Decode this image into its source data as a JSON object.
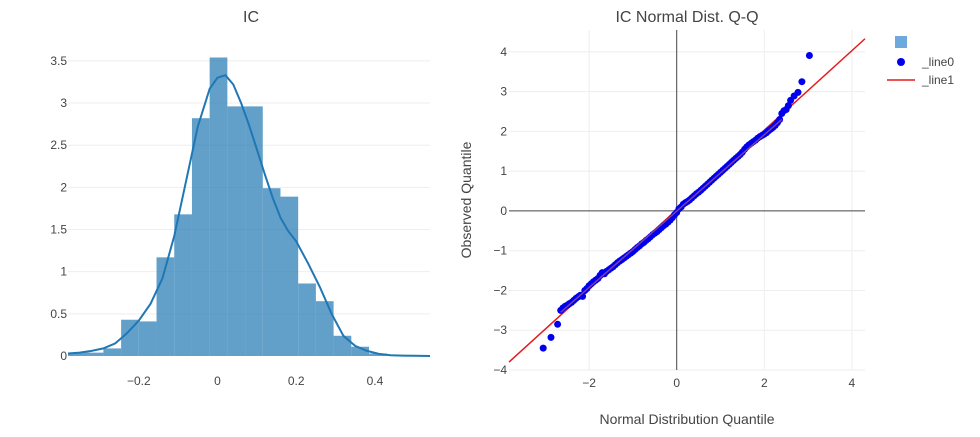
{
  "chart_data": [
    {
      "type": "bar",
      "title": "IC",
      "xlabel": "",
      "ylabel": "",
      "xlim": [
        -0.38,
        0.54
      ],
      "ylim": [
        0,
        3.7
      ],
      "x_ticks": [
        "−0.2",
        "0",
        "0.2",
        "0.4"
      ],
      "x_tick_values": [
        -0.2,
        0,
        0.2,
        0.4
      ],
      "y_ticks": [
        "0",
        "0.5",
        "1",
        "1.5",
        "2",
        "2.5",
        "3",
        "3.5"
      ],
      "y_tick_values": [
        0,
        0.5,
        1,
        1.5,
        2,
        2.5,
        3,
        3.5
      ],
      "bar_color": "#1f77b4",
      "bin_width": 0.045,
      "bins": [
        {
          "x0": -0.38,
          "x1": -0.29,
          "value": 0.04
        },
        {
          "x0": -0.29,
          "x1": -0.245,
          "value": 0.09
        },
        {
          "x0": -0.245,
          "x1": -0.2,
          "value": 0.43
        },
        {
          "x0": -0.2,
          "x1": -0.155,
          "value": 0.41
        },
        {
          "x0": -0.155,
          "x1": -0.11,
          "value": 1.17
        },
        {
          "x0": -0.11,
          "x1": -0.065,
          "value": 1.68
        },
        {
          "x0": -0.065,
          "x1": -0.02,
          "value": 2.82
        },
        {
          "x0": -0.02,
          "x1": 0.025,
          "value": 3.54
        },
        {
          "x0": 0.025,
          "x1": 0.07,
          "value": 2.96
        },
        {
          "x0": 0.07,
          "x1": 0.115,
          "value": 2.96
        },
        {
          "x0": 0.115,
          "x1": 0.16,
          "value": 1.99
        },
        {
          "x0": 0.16,
          "x1": 0.205,
          "value": 1.89
        },
        {
          "x0": 0.205,
          "x1": 0.25,
          "value": 0.86
        },
        {
          "x0": 0.25,
          "x1": 0.295,
          "value": 0.65
        },
        {
          "x0": 0.295,
          "x1": 0.34,
          "value": 0.24
        },
        {
          "x0": 0.34,
          "x1": 0.385,
          "value": 0.11
        },
        {
          "x0": 0.385,
          "x1": 0.43,
          "value": 0.03
        }
      ],
      "kde": {
        "color": "#1f77b4",
        "x": [
          -0.38,
          -0.35,
          -0.32,
          -0.29,
          -0.26,
          -0.23,
          -0.2,
          -0.17,
          -0.14,
          -0.11,
          -0.08,
          -0.05,
          -0.02,
          0.0,
          0.02,
          0.04,
          0.06,
          0.08,
          0.1,
          0.12,
          0.14,
          0.16,
          0.18,
          0.2,
          0.23,
          0.26,
          0.29,
          0.32,
          0.35,
          0.38,
          0.41,
          0.44,
          0.47,
          0.5,
          0.54
        ],
        "y": [
          0.03,
          0.04,
          0.06,
          0.09,
          0.15,
          0.27,
          0.42,
          0.62,
          0.92,
          1.42,
          2.07,
          2.72,
          3.17,
          3.3,
          3.33,
          3.22,
          3.0,
          2.74,
          2.45,
          2.16,
          1.88,
          1.64,
          1.48,
          1.36,
          1.1,
          0.82,
          0.5,
          0.24,
          0.12,
          0.06,
          0.025,
          0.01,
          0.005,
          0.002,
          0.0
        ]
      }
    },
    {
      "type": "scatter",
      "title": "IC Normal Dist. Q-Q",
      "xlabel": "Normal Distribution Quantile",
      "ylabel": "Observed Quantile",
      "xlim": [
        -3.83,
        4.3
      ],
      "ylim": [
        -4.0,
        4.55
      ],
      "x_ticks": [
        "−2",
        "0",
        "2",
        "4"
      ],
      "x_tick_values": [
        -2,
        0,
        2,
        4
      ],
      "y_ticks": [
        "−4",
        "−3",
        "−2",
        "−1",
        "0",
        "1",
        "2",
        "3",
        "4"
      ],
      "y_tick_values": [
        -4,
        -3,
        -2,
        -1,
        0,
        1,
        2,
        3,
        4
      ],
      "legend": {
        "placement": "top-right",
        "entries": [
          {
            "name": "",
            "kind": "swatch",
            "color": "#6fa8dc"
          },
          {
            "name": "_line0",
            "kind": "marker",
            "color": "#0000ee"
          },
          {
            "name": "_line1",
            "kind": "line",
            "color": "#e41a1c"
          }
        ]
      },
      "series": [
        {
          "name": "_line0",
          "kind": "points",
          "color": "#0000ee",
          "x": [
            -3.05,
            -2.87,
            -2.72,
            -2.65,
            -2.6,
            -2.55,
            -2.5,
            -2.45,
            -2.4,
            -2.35,
            -2.3,
            -2.25,
            -2.2,
            -2.15,
            -2.1,
            -2.05,
            -2.0,
            -1.95,
            -1.9,
            -1.85,
            -1.8,
            -1.75,
            -1.7,
            -1.65,
            -1.6,
            -1.55,
            -1.5,
            -1.45,
            -1.4,
            -1.35,
            -1.3,
            -1.25,
            -1.2,
            -1.15,
            -1.1,
            -1.05,
            -1.0,
            -0.95,
            -0.9,
            -0.85,
            -0.8,
            -0.75,
            -0.7,
            -0.65,
            -0.6,
            -0.55,
            -0.5,
            -0.45,
            -0.4,
            -0.35,
            -0.3,
            -0.25,
            -0.2,
            -0.15,
            -0.1,
            -0.05,
            0.0,
            0.05,
            0.1,
            0.15,
            0.2,
            0.25,
            0.3,
            0.35,
            0.4,
            0.45,
            0.5,
            0.55,
            0.6,
            0.65,
            0.7,
            0.75,
            0.8,
            0.85,
            0.9,
            0.95,
            1.0,
            1.05,
            1.1,
            1.15,
            1.2,
            1.25,
            1.3,
            1.35,
            1.4,
            1.45,
            1.5,
            1.55,
            1.6,
            1.65,
            1.7,
            1.75,
            1.8,
            1.85,
            1.9,
            1.95,
            2.0,
            2.05,
            2.1,
            2.15,
            2.2,
            2.25,
            2.3,
            2.35,
            2.4,
            2.45,
            2.5,
            2.55,
            2.6,
            2.68,
            2.77,
            2.86,
            3.03
          ],
          "y": [
            -3.45,
            -3.18,
            -2.85,
            -2.5,
            -2.44,
            -2.4,
            -2.37,
            -2.33,
            -2.3,
            -2.25,
            -2.2,
            -2.16,
            -2.12,
            -2.15,
            -2.0,
            -1.95,
            -1.88,
            -1.83,
            -1.78,
            -1.74,
            -1.7,
            -1.62,
            -1.55,
            -1.58,
            -1.52,
            -1.48,
            -1.44,
            -1.4,
            -1.35,
            -1.3,
            -1.26,
            -1.22,
            -1.18,
            -1.14,
            -1.1,
            -1.06,
            -1.02,
            -0.97,
            -0.92,
            -0.88,
            -0.83,
            -0.79,
            -0.74,
            -0.7,
            -0.65,
            -0.6,
            -0.56,
            -0.52,
            -0.47,
            -0.42,
            -0.37,
            -0.33,
            -0.28,
            -0.23,
            -0.17,
            -0.1,
            -0.04,
            0.05,
            0.1,
            0.17,
            0.21,
            0.24,
            0.28,
            0.33,
            0.38,
            0.43,
            0.47,
            0.52,
            0.57,
            0.62,
            0.67,
            0.72,
            0.77,
            0.82,
            0.87,
            0.92,
            0.97,
            1.02,
            1.07,
            1.12,
            1.17,
            1.22,
            1.27,
            1.32,
            1.37,
            1.42,
            1.48,
            1.55,
            1.61,
            1.66,
            1.7,
            1.74,
            1.78,
            1.83,
            1.87,
            1.9,
            1.93,
            1.97,
            2.02,
            2.06,
            2.1,
            2.15,
            2.22,
            2.3,
            2.45,
            2.52,
            2.55,
            2.65,
            2.78,
            2.89,
            2.98,
            3.25,
            3.91
          ]
        },
        {
          "name": "_line1",
          "kind": "line",
          "color": "#e41a1c",
          "x": [
            -3.83,
            4.3
          ],
          "y": [
            -3.8,
            4.33
          ]
        }
      ],
      "inner_line": {
        "color": "#7b3fa0",
        "x": [
          -2.65,
          2.4
        ],
        "y": [
          -2.55,
          2.3
        ]
      }
    }
  ]
}
